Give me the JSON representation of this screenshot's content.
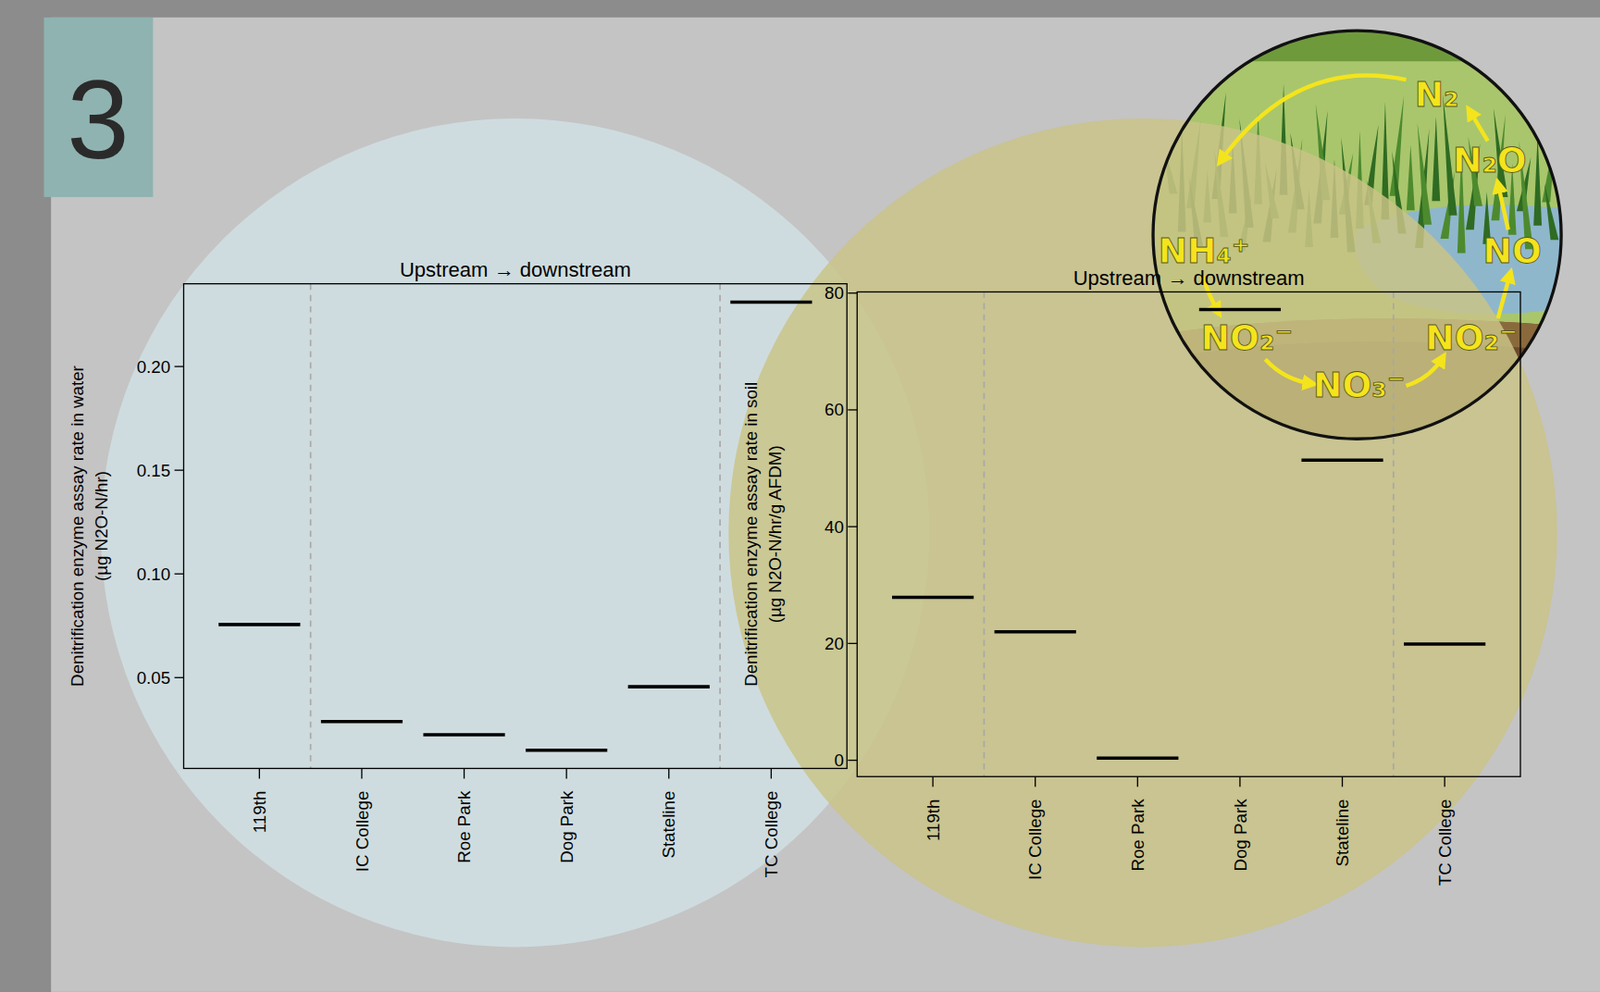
{
  "panel_label": "3",
  "diagram": {
    "nodes": [
      "N₂",
      "N₂O",
      "NO",
      "NO₂⁻",
      "NO₃⁻",
      "NO₂⁻",
      "NH₄⁺"
    ]
  },
  "chart_data": [
    {
      "type": "segment",
      "title": "Upstream → downstream",
      "y_label": "Denitrification enzyme assay rate in water (µg N2O-N/hr)",
      "categories": [
        "119th",
        "IC College",
        "Roe Park",
        "Dog Park",
        "Stateline",
        "TC College"
      ],
      "values": [
        0.0756,
        0.0288,
        0.0224,
        0.015,
        0.0456,
        0.231
      ],
      "color": "#000000",
      "grid": false,
      "ylim": [
        0.0062,
        0.2399
      ],
      "yticks": [
        0.05,
        {
          "value": 0.1,
          "label": "0.10"
        },
        0.15,
        {
          "value": 0.2,
          "label": "0.20"
        }
      ]
    },
    {
      "type": "segment",
      "title": "Upstream → downstream",
      "y_label": "Denitrification enzyme assay rate in soil (µg N2O-N/hr/g AFDM)",
      "categories": [
        "119th",
        "IC College",
        "Roe Park",
        "Dog Park",
        "Stateline",
        "TC College"
      ],
      "values": [
        27.9,
        22.0,
        0.35,
        77.2,
        51.4,
        19.9
      ],
      "color": "#000000",
      "grid": false,
      "ylim": [
        -2.8,
        80.2
      ],
      "yticks": [
        0,
        20,
        40,
        60,
        80
      ]
    }
  ]
}
